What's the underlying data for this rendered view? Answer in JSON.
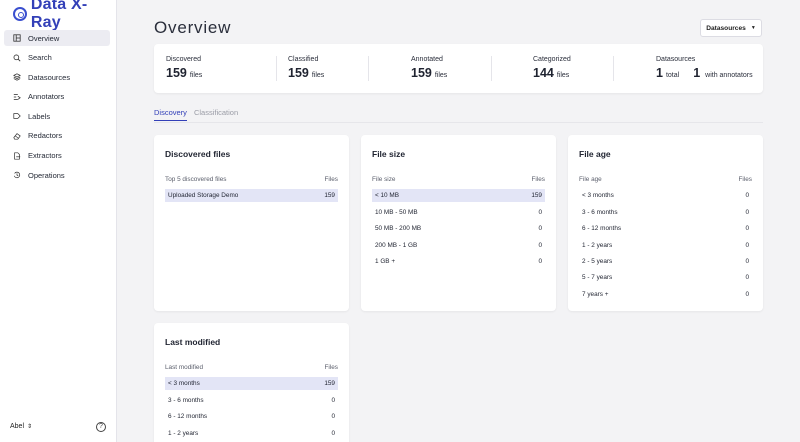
{
  "brand": {
    "name": "Data X-Ray"
  },
  "sidebar": {
    "items": [
      {
        "label": "Overview",
        "icon": "layout-icon"
      },
      {
        "label": "Search",
        "icon": "search-icon"
      },
      {
        "label": "Datasources",
        "icon": "layers-icon"
      },
      {
        "label": "Annotators",
        "icon": "annotator-icon"
      },
      {
        "label": "Labels",
        "icon": "tag-icon"
      },
      {
        "label": "Redactors",
        "icon": "eraser-icon"
      },
      {
        "label": "Extractors",
        "icon": "file-export-icon"
      },
      {
        "label": "Operations",
        "icon": "history-icon"
      }
    ],
    "active_index": 0,
    "user": "Abel",
    "help_glyph": "?"
  },
  "header": {
    "title": "Overview",
    "datasources_button": "Datasources"
  },
  "summary": {
    "discovered": {
      "label": "Discovered",
      "value": "159",
      "unit": "files"
    },
    "classified": {
      "label": "Classified",
      "value": "159",
      "unit": "files"
    },
    "annotated": {
      "label": "Annotated",
      "value": "159",
      "unit": "files"
    },
    "categorized": {
      "label": "Categorized",
      "value": "144",
      "unit": "files"
    },
    "datasources": {
      "label": "Datasources",
      "total_value": "1",
      "total_unit": "total",
      "annot_value": "1",
      "annot_unit": "with annotators"
    }
  },
  "tabs": [
    {
      "label": "Discovery",
      "active": true
    },
    {
      "label": "Classification",
      "active": false
    }
  ],
  "cards": {
    "discovered_files": {
      "title": "Discovered files",
      "col_label": "Top 5 discovered files",
      "col_count": "Files",
      "rows": [
        {
          "label": "Uploaded Storage Demo",
          "count": "159",
          "fraction": 1.0
        }
      ]
    },
    "file_size": {
      "title": "File size",
      "col_label": "File size",
      "col_count": "Files",
      "rows": [
        {
          "label": "< 10 MB",
          "count": "159",
          "fraction": 1.0
        },
        {
          "label": "10 MB - 50 MB",
          "count": "0",
          "fraction": 0
        },
        {
          "label": "50 MB - 200 MB",
          "count": "0",
          "fraction": 0
        },
        {
          "label": "200 MB - 1 GB",
          "count": "0",
          "fraction": 0
        },
        {
          "label": "1 GB +",
          "count": "0",
          "fraction": 0
        }
      ]
    },
    "file_age": {
      "title": "File age",
      "col_label": "File age",
      "col_count": "Files",
      "rows": [
        {
          "label": "< 3 months",
          "count": "0",
          "fraction": 0
        },
        {
          "label": "3 - 6 months",
          "count": "0",
          "fraction": 0
        },
        {
          "label": "6 - 12 months",
          "count": "0",
          "fraction": 0
        },
        {
          "label": "1 - 2 years",
          "count": "0",
          "fraction": 0
        },
        {
          "label": "2 - 5 years",
          "count": "0",
          "fraction": 0
        },
        {
          "label": "5 - 7 years",
          "count": "0",
          "fraction": 0
        },
        {
          "label": "7 years +",
          "count": "0",
          "fraction": 0
        }
      ]
    },
    "last_modified": {
      "title": "Last modified",
      "col_label": "Last modified",
      "col_count": "Files",
      "rows": [
        {
          "label": "< 3 months",
          "count": "159",
          "fraction": 1.0
        },
        {
          "label": "3 - 6 months",
          "count": "0",
          "fraction": 0
        },
        {
          "label": "6 - 12 months",
          "count": "0",
          "fraction": 0
        },
        {
          "label": "1 - 2 years",
          "count": "0",
          "fraction": 0
        }
      ]
    }
  },
  "colors": {
    "accent": "#3340b8",
    "bar": "#e3e5f6",
    "background": "#f3f3f5"
  }
}
